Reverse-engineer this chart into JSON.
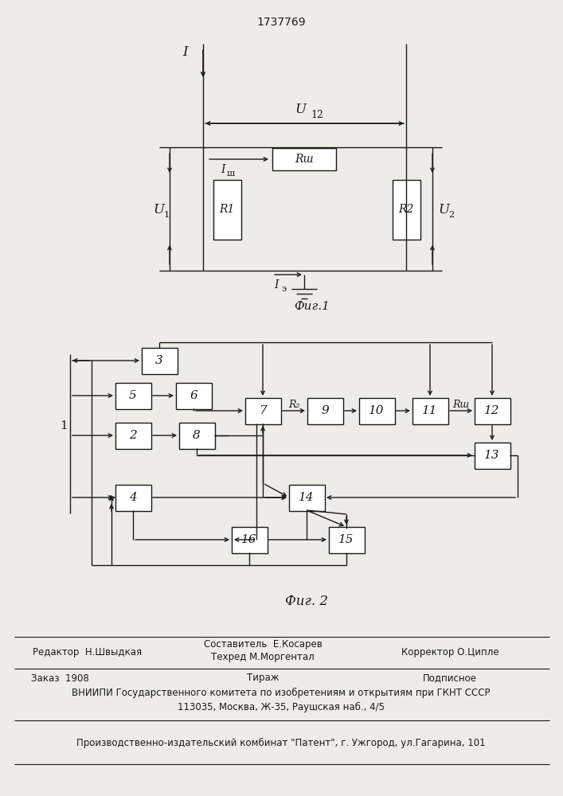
{
  "patent_number": "1737769",
  "fig1_caption": "Фиг.1",
  "fig2_caption": "Фиг. 2",
  "background_color": "#eeece8",
  "line_color": "#1a1a1a",
  "box_color": "#ffffff",
  "text_color": "#1a1a1a",
  "footer_line1_left": "Редактор  Н.Швыдкая",
  "footer_comp1": "Составитель  Е.Косарев",
  "footer_comp2": "Техред М.Моргентал",
  "footer_line1_right": "Корректор О.Ципле",
  "footer_order": "Заказ  1908",
  "footer_tirazh": "Тираж",
  "footer_podp": "Подписное",
  "footer_line3": "ВНИИПИ Государственного комитета по изобретениям и открытиям при ГКНТ СССР",
  "footer_line4": "113035, Москва, Ж-35, Раушская наб., 4/5",
  "footer_line5": "Производственно-издательский комбинат \"Патент\", г. Ужгород, ул.Гагарина, 101"
}
